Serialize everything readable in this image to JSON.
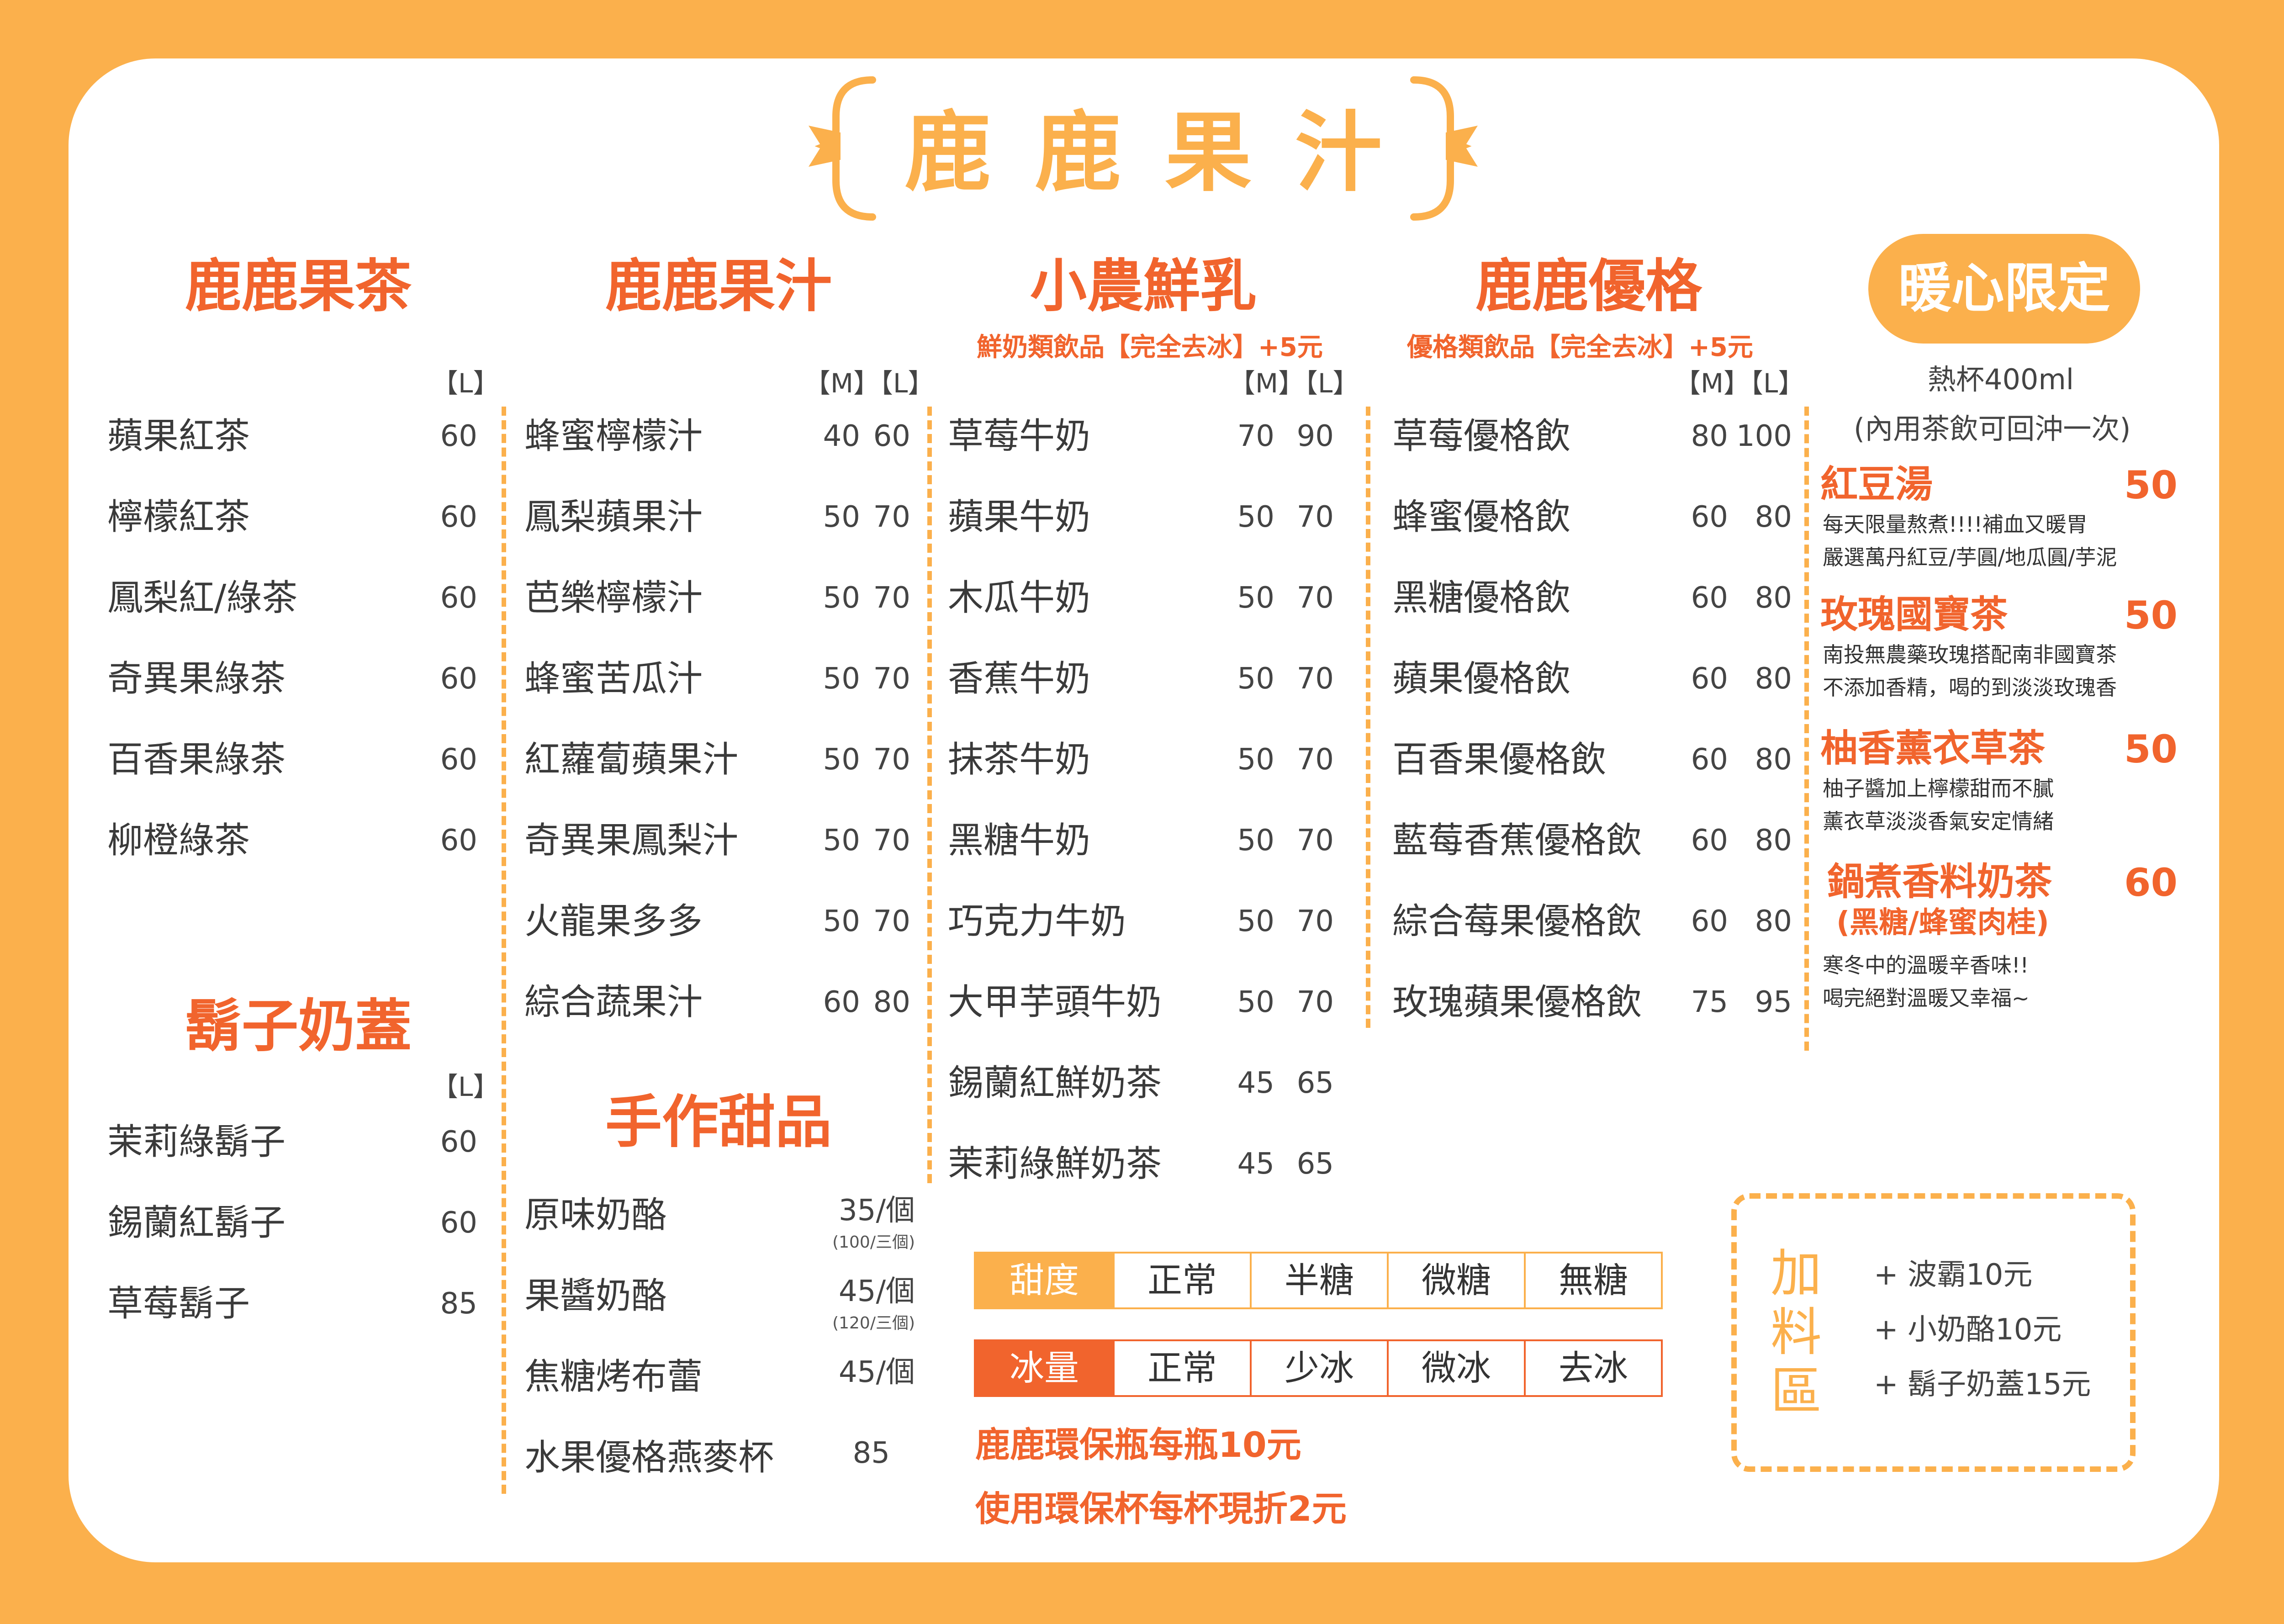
{
  "title": "鹿鹿果汁",
  "colors": {
    "orange": "#fbb04c",
    "red": "#f1642d",
    "text": "#3a3a3a"
  },
  "fruit_tea": {
    "title": "鹿鹿果茶",
    "size_header": "【L】",
    "items": [
      {
        "name": "蘋果紅茶",
        "price": "60"
      },
      {
        "name": "檸檬紅茶",
        "price": "60"
      },
      {
        "name": "鳳梨紅/綠茶",
        "price": "60"
      },
      {
        "name": "奇異果綠茶",
        "price": "60"
      },
      {
        "name": "百香果綠茶",
        "price": "60"
      },
      {
        "name": "柳橙綠茶",
        "price": "60"
      }
    ]
  },
  "beard_cream": {
    "title": "鬍子奶蓋",
    "size_header": "【L】",
    "items": [
      {
        "name": "茉莉綠鬍子",
        "price": "60"
      },
      {
        "name": "錫蘭紅鬍子",
        "price": "60"
      },
      {
        "name": "草莓鬍子",
        "price": "85"
      }
    ]
  },
  "juice": {
    "title": "鹿鹿果汁",
    "size_header": "【M】【L】",
    "items": [
      {
        "name": "蜂蜜檸檬汁",
        "m": "40",
        "l": "60"
      },
      {
        "name": "鳳梨蘋果汁",
        "m": "50",
        "l": "70"
      },
      {
        "name": "芭樂檸檬汁",
        "m": "50",
        "l": "70"
      },
      {
        "name": "蜂蜜苦瓜汁",
        "m": "50",
        "l": "70"
      },
      {
        "name": "紅蘿蔔蘋果汁",
        "m": "50",
        "l": "70"
      },
      {
        "name": "奇異果鳳梨汁",
        "m": "50",
        "l": "70"
      },
      {
        "name": "火龍果多多",
        "m": "50",
        "l": "70"
      },
      {
        "name": "綜合蔬果汁",
        "m": "60",
        "l": "80"
      }
    ]
  },
  "dessert": {
    "title": "手作甜品",
    "items": [
      {
        "name": "原味奶酪",
        "price": "35/個",
        "sub": "(100/三個)"
      },
      {
        "name": "果醬奶酪",
        "price": "45/個",
        "sub": "(120/三個)"
      },
      {
        "name": "焦糖烤布蕾",
        "price": "45/個",
        "sub": ""
      },
      {
        "name": "水果優格燕麥杯",
        "price": "85",
        "sub": ""
      }
    ]
  },
  "milk": {
    "title": "小農鮮乳",
    "note": "鮮奶類飲品【完全去冰】+5元",
    "size_header": "【M】【L】",
    "items": [
      {
        "name": "草莓牛奶",
        "m": "70",
        "l": "90"
      },
      {
        "name": "蘋果牛奶",
        "m": "50",
        "l": "70"
      },
      {
        "name": "木瓜牛奶",
        "m": "50",
        "l": "70"
      },
      {
        "name": "香蕉牛奶",
        "m": "50",
        "l": "70"
      },
      {
        "name": "抹茶牛奶",
        "m": "50",
        "l": "70"
      },
      {
        "name": "黑糖牛奶",
        "m": "50",
        "l": "70"
      },
      {
        "name": "巧克力牛奶",
        "m": "50",
        "l": "70"
      },
      {
        "name": "大甲芋頭牛奶",
        "m": "50",
        "l": "70"
      },
      {
        "name": "錫蘭紅鮮奶茶",
        "m": "45",
        "l": "65"
      },
      {
        "name": "茉莉綠鮮奶茶",
        "m": "45",
        "l": "65"
      }
    ]
  },
  "yogurt": {
    "title": "鹿鹿優格",
    "note": "優格類飲品【完全去冰】+5元",
    "size_header": "【M】【L】",
    "items": [
      {
        "name": "草莓優格飲",
        "m": "80",
        "l": "100"
      },
      {
        "name": "蜂蜜優格飲",
        "m": "60",
        "l": "80"
      },
      {
        "name": "黑糖優格飲",
        "m": "60",
        "l": "80"
      },
      {
        "name": "蘋果優格飲",
        "m": "60",
        "l": "80"
      },
      {
        "name": "百香果優格飲",
        "m": "60",
        "l": "80"
      },
      {
        "name": "藍莓香蕉優格飲",
        "m": "60",
        "l": "80"
      },
      {
        "name": "綜合莓果優格飲",
        "m": "60",
        "l": "80"
      },
      {
        "name": "玫瑰蘋果優格飲",
        "m": "75",
        "l": "95"
      }
    ]
  },
  "warm": {
    "title": "暖心限定",
    "subtitle1": "熱杯400ml",
    "subtitle2": "(內用茶飲可回沖一次)",
    "items": [
      {
        "name": "紅豆湯",
        "price": "50",
        "desc1": "每天限量熬煮!!!!補血又暖胃",
        "desc2": "嚴選萬丹紅豆/芋圓/地瓜圓/芋泥"
      },
      {
        "name": "玫瑰國寶茶",
        "price": "50",
        "desc1": "南投無農藥玫瑰搭配南非國寶茶",
        "desc2": "不添加香精，喝的到淡淡玫瑰香"
      },
      {
        "name": "柚香薰衣草茶",
        "price": "50",
        "desc1": "柚子醬加上檸檬甜而不膩",
        "desc2": "薰衣草淡淡香氣安定情緒"
      },
      {
        "name": "鍋煮香料奶茶",
        "name2": "(黑糖/蜂蜜肉桂)",
        "price": "60",
        "desc1": "寒冬中的溫暖辛香味!!",
        "desc2": "喝完絕對溫暖又幸福~"
      }
    ]
  },
  "sweetness": {
    "label": "甜度",
    "options": [
      "正常",
      "半糖",
      "微糖",
      "無糖"
    ]
  },
  "ice": {
    "label": "冰量",
    "options": [
      "正常",
      "少冰",
      "微冰",
      "去冰"
    ]
  },
  "footnotes": [
    "鹿鹿環保瓶每瓶10元",
    "使用環保杯每杯現折2元"
  ],
  "addons": {
    "title": "加料區",
    "title_chars": [
      "加",
      "料",
      "區"
    ],
    "items": [
      "+ 波霸10元",
      "+ 小奶酪10元",
      "+ 鬍子奶蓋15元"
    ]
  }
}
